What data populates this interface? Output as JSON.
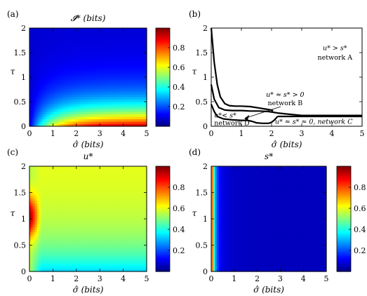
{
  "chart_data": [
    {
      "panel": "(a)",
      "type": "heatmap",
      "title": "𝓘* (bits)",
      "xlabel": "σ̂ (bits)",
      "ylabel": "τ",
      "xlim": [
        0,
        5
      ],
      "ylim": [
        0,
        2
      ],
      "xticks": [
        "0",
        "1",
        "2",
        "3",
        "4",
        "5"
      ],
      "yticks": [
        "0",
        "0.5",
        "1",
        "1.5",
        "2"
      ],
      "colorbar": {
        "min": 0,
        "max": 1,
        "ticks": [
          "0.2",
          "0.4",
          "0.6",
          "0.8"
        ]
      },
      "field": "information",
      "description_values": {
        "min": 0.0,
        "max": 0.97
      }
    },
    {
      "panel": "(b)",
      "type": "line",
      "xlabel": "σ̂ (bits)",
      "ylabel": "τ",
      "xlim": [
        0,
        5
      ],
      "ylim": [
        0,
        2
      ],
      "xticks": [
        "0",
        "1",
        "2",
        "3",
        "4",
        "5"
      ],
      "yticks": [
        "0",
        "0.5",
        "1",
        "1.5",
        "2"
      ],
      "series": [
        {
          "x": [
            0,
            0.1,
            0.2,
            0.3,
            0.45,
            0.6,
            0.8,
            1.0,
            1.3,
            1.6,
            1.8,
            2.0,
            2.05
          ],
          "y": [
            2.0,
            1.3,
            0.85,
            0.6,
            0.46,
            0.42,
            0.41,
            0.41,
            0.4,
            0.37,
            0.35,
            0.33,
            0.31
          ]
        },
        {
          "x": [
            0,
            0.1,
            0.25,
            0.45,
            0.7,
            1.0,
            1.3,
            1.6,
            1.9,
            2.2,
            2.5,
            3.0,
            4.0,
            5.0
          ],
          "y": [
            0.85,
            0.55,
            0.38,
            0.33,
            0.32,
            0.32,
            0.31,
            0.31,
            0.3,
            0.27,
            0.25,
            0.22,
            0.22,
            0.22
          ]
        },
        {
          "x": [
            0,
            0.1,
            0.2,
            0.4,
            0.7,
            1.0,
            1.2,
            1.35,
            1.5,
            1.7,
            1.9,
            2.0,
            2.1,
            2.2
          ],
          "y": [
            0.45,
            0.3,
            0.2,
            0.15,
            0.13,
            0.12,
            0.12,
            0.1,
            0.07,
            0.06,
            0.06,
            0.08,
            0.13,
            0.2
          ]
        }
      ],
      "annotations": [
        {
          "text": "u* > s*",
          "sub": "network A"
        },
        {
          "text": "u* ≈ s* > 0",
          "sub": "network B"
        },
        {
          "text": "u*< s*",
          "sub": "network D"
        },
        {
          "text": "u* ≈ s* ≈ 0, network C"
        }
      ]
    },
    {
      "panel": "(c)",
      "type": "heatmap",
      "title": "u*",
      "xlabel": "σ̂ (bits)",
      "ylabel": "τ",
      "xlim": [
        0,
        5
      ],
      "ylim": [
        0,
        2
      ],
      "xticks": [
        "0",
        "1",
        "2",
        "3",
        "4",
        "5"
      ],
      "yticks": [
        "0",
        "0.5",
        "1",
        "1.5",
        "2"
      ],
      "colorbar": {
        "min": 0,
        "max": 1,
        "ticks": [
          "0.2",
          "0.4",
          "0.6",
          "0.8"
        ]
      },
      "field": "u",
      "description_values": {
        "min": 0.0,
        "max": 0.97
      }
    },
    {
      "panel": "(d)",
      "type": "heatmap",
      "title": "s*",
      "xlabel": "σ̂ (bits)",
      "ylabel": "τ",
      "xlim": [
        0,
        5
      ],
      "ylim": [
        0,
        2
      ],
      "xticks": [
        "0",
        "1",
        "2",
        "3",
        "4",
        "5"
      ],
      "yticks": [
        "0",
        "0.5",
        "1",
        "1.5",
        "2"
      ],
      "colorbar": {
        "min": 0,
        "max": 1,
        "ticks": [
          "0.2",
          "0.4",
          "0.6",
          "0.8"
        ]
      },
      "field": "s",
      "description_values": {
        "min": 0.02,
        "max": 0.97
      }
    }
  ]
}
